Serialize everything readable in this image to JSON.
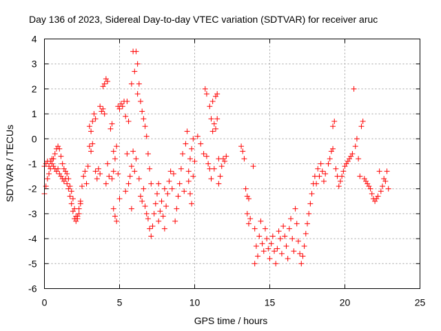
{
  "chart_data": {
    "type": "scatter",
    "title": "Day 136 of 2023, Sidereal Day-to-day VTEC variation (SDTVAR) for receiver aruc",
    "xlabel": "GPS time / hours",
    "ylabel": "SDTVAR / TECUs",
    "xlim": [
      0,
      25
    ],
    "ylim": [
      -6,
      4
    ],
    "xticks": [
      "0",
      "5",
      "10",
      "15",
      "20",
      "25"
    ],
    "yticks": [
      "-6",
      "-5",
      "-4",
      "-3",
      "-2",
      "-1",
      "0",
      "1",
      "2",
      "3",
      "4"
    ],
    "grid": true,
    "marker": "+",
    "series": [
      {
        "name": "SDTVAR",
        "color": "#ff0000",
        "points": [
          [
            0.0,
            -2.2
          ],
          [
            0.1,
            -1.9
          ],
          [
            0.2,
            -1.6
          ],
          [
            0.3,
            -1.4
          ],
          [
            0.4,
            -1.2
          ],
          [
            0.5,
            -1.0
          ],
          [
            0.6,
            -0.8
          ],
          [
            0.7,
            -0.6
          ],
          [
            0.8,
            -0.4
          ],
          [
            0.9,
            -0.3
          ],
          [
            1.0,
            -0.4
          ],
          [
            1.1,
            -0.7
          ],
          [
            1.2,
            -1.0
          ],
          [
            1.3,
            -1.2
          ],
          [
            1.4,
            -1.3
          ],
          [
            1.5,
            -1.4
          ],
          [
            1.6,
            -1.6
          ],
          [
            1.7,
            -1.9
          ],
          [
            1.8,
            -2.1
          ],
          [
            1.9,
            -2.4
          ],
          [
            2.0,
            -2.8
          ],
          [
            2.1,
            -3.1
          ],
          [
            2.2,
            -3.2
          ],
          [
            2.3,
            -3.0
          ],
          [
            2.4,
            -2.6
          ],
          [
            0.0,
            -1.1
          ],
          [
            0.1,
            -1.0
          ],
          [
            0.2,
            -0.9
          ],
          [
            0.3,
            -1.1
          ],
          [
            0.4,
            -0.9
          ],
          [
            0.5,
            -0.8
          ],
          [
            0.6,
            -1.1
          ],
          [
            0.7,
            -1.2
          ],
          [
            0.8,
            -1.3
          ],
          [
            0.9,
            -1.2
          ],
          [
            1.0,
            -1.4
          ],
          [
            1.1,
            -1.5
          ],
          [
            1.2,
            -1.6
          ],
          [
            1.3,
            -1.7
          ],
          [
            1.4,
            -1.6
          ],
          [
            1.5,
            -1.8
          ],
          [
            1.6,
            -2.0
          ],
          [
            1.7,
            -2.3
          ],
          [
            1.8,
            -2.6
          ],
          [
            1.9,
            -2.9
          ],
          [
            2.0,
            -3.2
          ],
          [
            2.1,
            -3.3
          ],
          [
            2.2,
            -3.1
          ],
          [
            2.3,
            -2.8
          ],
          [
            2.4,
            -2.5
          ],
          [
            2.5,
            -1.9
          ],
          [
            2.6,
            -1.5
          ],
          [
            2.7,
            -1.3
          ],
          [
            2.8,
            -1.8
          ],
          [
            2.9,
            -1.1
          ],
          [
            3.0,
            0.5
          ],
          [
            3.0,
            -0.3
          ],
          [
            3.1,
            0.3
          ],
          [
            3.1,
            -0.5
          ],
          [
            3.2,
            0.7
          ],
          [
            3.2,
            -0.2
          ],
          [
            3.3,
            1.0
          ],
          [
            3.4,
            0.8
          ],
          [
            3.4,
            -1.3
          ],
          [
            3.5,
            -1.6
          ],
          [
            3.6,
            -1.2
          ],
          [
            3.7,
            -1.4
          ],
          [
            3.7,
            1.3
          ],
          [
            3.8,
            1.1
          ],
          [
            3.9,
            1.2
          ],
          [
            3.9,
            2.1
          ],
          [
            4.0,
            2.2
          ],
          [
            4.0,
            1.0
          ],
          [
            4.1,
            2.4
          ],
          [
            4.1,
            -1.8
          ],
          [
            4.2,
            2.3
          ],
          [
            4.2,
            -1.0
          ],
          [
            4.3,
            -1.5
          ],
          [
            4.4,
            0.4
          ],
          [
            4.5,
            0.6
          ],
          [
            4.5,
            -1.6
          ],
          [
            4.6,
            -1.3
          ],
          [
            4.6,
            -0.5
          ],
          [
            4.6,
            -2.8
          ],
          [
            4.7,
            -0.8
          ],
          [
            4.7,
            -3.1
          ],
          [
            4.8,
            -0.3
          ],
          [
            4.8,
            -3.3
          ],
          [
            4.9,
            1.3
          ],
          [
            4.9,
            -1.4
          ],
          [
            5.0,
            1.2
          ],
          [
            5.0,
            -2.4
          ],
          [
            5.1,
            1.4
          ],
          [
            5.2,
            1.3
          ],
          [
            5.3,
            1.5
          ],
          [
            5.4,
            0.9
          ],
          [
            5.4,
            -2.1
          ],
          [
            5.5,
            1.5
          ],
          [
            5.5,
            -0.6
          ],
          [
            5.6,
            0.7
          ],
          [
            5.6,
            -1.8
          ],
          [
            5.7,
            -1.5
          ],
          [
            5.8,
            -1.1
          ],
          [
            5.8,
            2.2
          ],
          [
            5.8,
            -2.8
          ],
          [
            5.9,
            3.5
          ],
          [
            5.9,
            -0.5
          ],
          [
            6.0,
            2.7
          ],
          [
            6.0,
            -1.3
          ],
          [
            6.1,
            3.5
          ],
          [
            6.1,
            -0.8
          ],
          [
            6.2,
            3.0
          ],
          [
            6.2,
            1.8
          ],
          [
            6.3,
            2.2
          ],
          [
            6.3,
            -1.6
          ],
          [
            6.4,
            1.5
          ],
          [
            6.4,
            -2.3
          ],
          [
            6.5,
            1.1
          ],
          [
            6.5,
            -2.5
          ],
          [
            6.6,
            0.8
          ],
          [
            6.6,
            -2.0
          ],
          [
            6.7,
            0.5
          ],
          [
            6.7,
            -2.7
          ],
          [
            6.8,
            0.1
          ],
          [
            6.8,
            -3.0
          ],
          [
            6.9,
            -0.6
          ],
          [
            6.9,
            -3.2
          ],
          [
            7.0,
            -1.2
          ],
          [
            7.0,
            -3.6
          ],
          [
            7.1,
            -1.8
          ],
          [
            7.1,
            -3.9
          ],
          [
            7.2,
            -3.5
          ],
          [
            7.3,
            -3.0
          ],
          [
            7.4,
            -2.6
          ],
          [
            7.5,
            -2.2
          ],
          [
            7.6,
            -1.8
          ],
          [
            7.6,
            -3.3
          ],
          [
            7.7,
            -2.9
          ],
          [
            7.8,
            -2.5
          ],
          [
            7.9,
            -3.1
          ],
          [
            8.0,
            -3.6
          ],
          [
            8.0,
            -2.0
          ],
          [
            8.1,
            -2.7
          ],
          [
            8.2,
            -2.2
          ],
          [
            8.3,
            -1.7
          ],
          [
            8.4,
            -1.3
          ],
          [
            8.5,
            -2.0
          ],
          [
            8.6,
            -1.4
          ],
          [
            8.7,
            -3.3
          ],
          [
            8.8,
            -2.8
          ],
          [
            8.9,
            -2.3
          ],
          [
            9.0,
            -1.8
          ],
          [
            9.1,
            -1.2
          ],
          [
            9.2,
            -0.6
          ],
          [
            9.3,
            -2.1
          ],
          [
            9.4,
            -0.2
          ],
          [
            9.5,
            0.3
          ],
          [
            9.6,
            -1.3
          ],
          [
            9.6,
            -1.7
          ],
          [
            9.7,
            -0.8
          ],
          [
            9.7,
            -2.2
          ],
          [
            9.8,
            -0.4
          ],
          [
            9.8,
            -2.6
          ],
          [
            9.9,
            0.0
          ],
          [
            9.9,
            -1.5
          ],
          [
            10.0,
            -0.9
          ],
          [
            10.2,
            0.1
          ],
          [
            10.4,
            -0.2
          ],
          [
            10.6,
            -0.6
          ],
          [
            10.7,
            2.0
          ],
          [
            10.8,
            1.8
          ],
          [
            10.8,
            -0.7
          ],
          [
            10.9,
            -1.0
          ],
          [
            11.0,
            1.3
          ],
          [
            11.0,
            -1.2
          ],
          [
            11.1,
            0.8
          ],
          [
            11.1,
            -1.6
          ],
          [
            11.2,
            1.5
          ],
          [
            11.2,
            0.3
          ],
          [
            11.3,
            0.6
          ],
          [
            11.3,
            -1.2
          ],
          [
            11.4,
            1.7
          ],
          [
            11.4,
            0.4
          ],
          [
            11.5,
            1.8
          ],
          [
            11.5,
            0.8
          ],
          [
            11.6,
            -0.8
          ],
          [
            11.6,
            -1.8
          ],
          [
            11.7,
            -1.5
          ],
          [
            11.8,
            -1.1
          ],
          [
            11.9,
            -0.8
          ],
          [
            12.0,
            -0.9
          ],
          [
            12.1,
            -0.7
          ],
          [
            13.1,
            -0.3
          ],
          [
            13.2,
            -0.5
          ],
          [
            13.3,
            -0.8
          ],
          [
            13.4,
            -2.0
          ],
          [
            13.5,
            -2.3
          ],
          [
            13.6,
            -2.4
          ],
          [
            13.5,
            -3.0
          ],
          [
            13.6,
            -3.4
          ],
          [
            13.7,
            -3.2
          ],
          [
            13.9,
            -1.1
          ],
          [
            14.0,
            -3.6
          ],
          [
            14.0,
            -5.0
          ],
          [
            14.1,
            -4.3
          ],
          [
            14.2,
            -4.7
          ],
          [
            14.3,
            -3.9
          ],
          [
            14.4,
            -3.3
          ],
          [
            14.5,
            -4.2
          ],
          [
            14.6,
            -4.5
          ],
          [
            14.7,
            -3.6
          ],
          [
            14.8,
            -4.0
          ],
          [
            14.9,
            -4.4
          ],
          [
            15.0,
            -4.8
          ],
          [
            15.1,
            -4.2
          ],
          [
            15.2,
            -3.9
          ],
          [
            15.3,
            -4.5
          ],
          [
            15.4,
            -5.0
          ],
          [
            15.5,
            -4.4
          ],
          [
            15.6,
            -3.7
          ],
          [
            15.7,
            -4.0
          ],
          [
            15.8,
            -4.6
          ],
          [
            15.9,
            -3.5
          ],
          [
            16.0,
            -3.9
          ],
          [
            16.1,
            -4.3
          ],
          [
            16.2,
            -4.8
          ],
          [
            16.3,
            -3.6
          ],
          [
            16.4,
            -3.2
          ],
          [
            16.5,
            -4.0
          ],
          [
            16.6,
            -4.5
          ],
          [
            16.7,
            -2.8
          ],
          [
            16.8,
            -3.4
          ],
          [
            16.9,
            -4.1
          ],
          [
            17.0,
            -4.6
          ],
          [
            17.1,
            -5.0
          ],
          [
            17.2,
            -4.7
          ],
          [
            17.3,
            -4.3
          ],
          [
            17.4,
            -3.8
          ],
          [
            17.5,
            -3.4
          ],
          [
            17.6,
            -3.0
          ],
          [
            17.7,
            -2.6
          ],
          [
            17.8,
            -2.2
          ],
          [
            17.9,
            -1.8
          ],
          [
            18.0,
            -1.5
          ],
          [
            18.1,
            -1.8
          ],
          [
            18.2,
            -1.2
          ],
          [
            18.3,
            -1.5
          ],
          [
            18.4,
            -1.0
          ],
          [
            18.5,
            -1.3
          ],
          [
            18.6,
            -1.7
          ],
          [
            18.7,
            -1.4
          ],
          [
            18.9,
            -1.0
          ],
          [
            19.0,
            -0.8
          ],
          [
            19.1,
            -0.5
          ],
          [
            19.2,
            0.5
          ],
          [
            19.3,
            0.7
          ],
          [
            19.2,
            -0.4
          ],
          [
            19.4,
            -1.2
          ],
          [
            19.5,
            -1.5
          ],
          [
            19.6,
            -1.9
          ],
          [
            19.7,
            -1.7
          ],
          [
            19.8,
            -1.5
          ],
          [
            19.9,
            -1.3
          ],
          [
            20.0,
            -1.1
          ],
          [
            20.1,
            -1.0
          ],
          [
            20.2,
            -0.9
          ],
          [
            20.3,
            -0.8
          ],
          [
            20.4,
            -0.7
          ],
          [
            20.5,
            -0.6
          ],
          [
            20.6,
            2.0
          ],
          [
            20.7,
            -0.3
          ],
          [
            20.8,
            0.0
          ],
          [
            20.9,
            -0.8
          ],
          [
            21.0,
            -1.5
          ],
          [
            21.1,
            0.5
          ],
          [
            21.2,
            0.7
          ],
          [
            21.3,
            -1.6
          ],
          [
            21.4,
            -1.7
          ],
          [
            21.5,
            -1.8
          ],
          [
            21.6,
            -1.9
          ],
          [
            21.7,
            -2.0
          ],
          [
            21.8,
            -2.2
          ],
          [
            21.9,
            -2.4
          ],
          [
            22.0,
            -2.5
          ],
          [
            22.1,
            -2.4
          ],
          [
            22.2,
            -2.3
          ],
          [
            22.3,
            -1.3
          ],
          [
            22.4,
            -2.1
          ],
          [
            22.5,
            -1.9
          ],
          [
            22.6,
            -1.6
          ],
          [
            22.7,
            -1.7
          ],
          [
            22.8,
            -1.3
          ],
          [
            22.9,
            -2.0
          ]
        ]
      }
    ]
  }
}
